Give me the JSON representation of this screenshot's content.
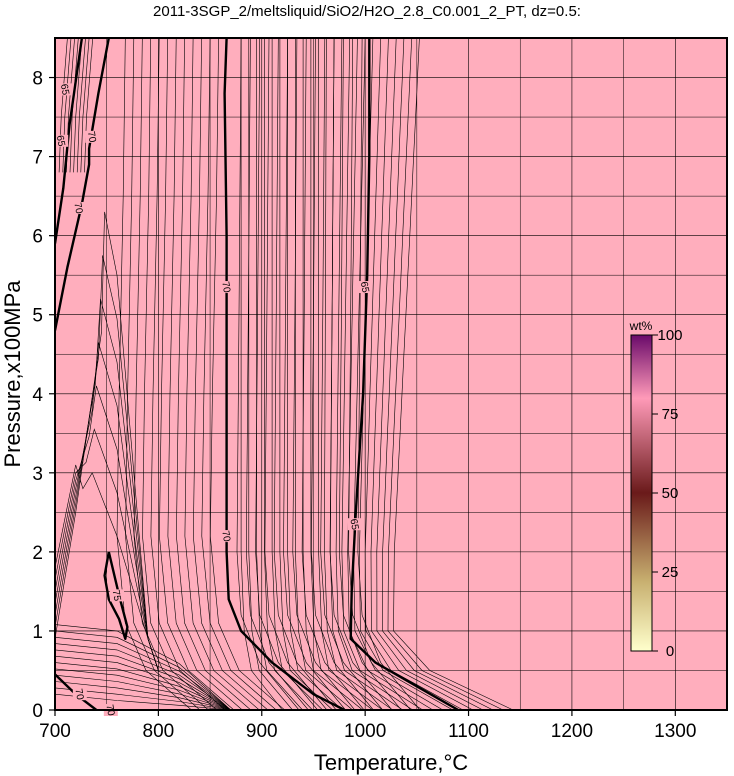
{
  "chart_data": {
    "type": "contour",
    "title": "2011-3SGP_2/meltsliquid/SiO2/H2O_2.8_C0.001_2_PT, dz=0.5:",
    "xlabel": "Temperature,°C",
    "ylabel": "Pressure,x100MPa",
    "xlim": [
      700,
      1350
    ],
    "ylim": [
      0,
      8.5
    ],
    "x_ticks": [
      700,
      800,
      900,
      1000,
      1100,
      1200,
      1300
    ],
    "y_ticks": [
      0,
      1,
      2,
      3,
      4,
      5,
      6,
      7,
      8
    ],
    "grid": true,
    "background_color": "#ffaebd",
    "colorbar": {
      "title": "wt%",
      "range": [
        0,
        100
      ],
      "ticks": [
        "0",
        "25",
        "50",
        "75",
        "100"
      ]
    },
    "bold_contours": [
      {
        "level": 70,
        "points": [
          [
            726,
            8.5
          ],
          [
            714,
            7.4
          ],
          [
            708,
            6.6
          ],
          [
            700,
            5.9
          ]
        ]
      },
      {
        "level": 70,
        "points": [
          [
            752,
            8.5
          ],
          [
            742,
            7.8
          ],
          [
            733,
            7.1
          ],
          [
            733,
            6.9
          ],
          [
            726,
            6.4
          ],
          [
            712,
            5.6
          ],
          [
            700,
            4.8
          ]
        ]
      },
      {
        "level": 70,
        "points": [
          [
            866,
            8.5
          ],
          [
            864,
            7.8
          ],
          [
            866,
            6.0
          ],
          [
            866,
            4.0
          ],
          [
            866,
            2.0
          ],
          [
            868,
            1.4
          ],
          [
            880,
            1.0
          ],
          [
            910,
            0.6
          ],
          [
            950,
            0.2
          ],
          [
            980,
            0.0
          ]
        ]
      },
      {
        "level": 65,
        "points": [
          [
            1004,
            8.5
          ],
          [
            1004,
            7.0
          ],
          [
            1002,
            5.5
          ],
          [
            998,
            4.0
          ],
          [
            991,
            2.5
          ],
          [
            987,
            1.5
          ],
          [
            986,
            0.9
          ],
          [
            1010,
            0.6
          ],
          [
            1050,
            0.3
          ],
          [
            1090,
            0.0
          ]
        ]
      },
      {
        "level": 75,
        "points": [
          [
            752,
            2.0
          ],
          [
            748,
            1.7
          ],
          [
            752,
            1.4
          ],
          [
            762,
            1.15
          ],
          [
            768,
            0.9
          ],
          [
            770,
            1.05
          ],
          [
            762,
            1.45
          ],
          [
            752,
            2.0
          ]
        ]
      },
      {
        "level": 70,
        "points": [
          [
            700,
            0.45
          ],
          [
            720,
            0.2
          ],
          [
            740,
            0.0
          ]
        ]
      }
    ],
    "contour_labels": [
      {
        "text": "65",
        "x": 710,
        "y": 7.85
      },
      {
        "text": "65",
        "x": 706,
        "y": 7.2
      },
      {
        "text": "70",
        "x": 736,
        "y": 7.25
      },
      {
        "text": "70",
        "x": 723,
        "y": 6.35
      },
      {
        "text": "70",
        "x": 866,
        "y": 5.35
      },
      {
        "text": "65",
        "x": 1000,
        "y": 5.35
      },
      {
        "text": "70",
        "x": 866,
        "y": 2.2
      },
      {
        "text": "65",
        "x": 990,
        "y": 2.35
      },
      {
        "text": "75",
        "x": 760,
        "y": 1.45
      },
      {
        "text": "70",
        "x": 724,
        "y": 0.2
      },
      {
        "text": "70",
        "x": 754,
        "y": 0.0
      }
    ]
  }
}
